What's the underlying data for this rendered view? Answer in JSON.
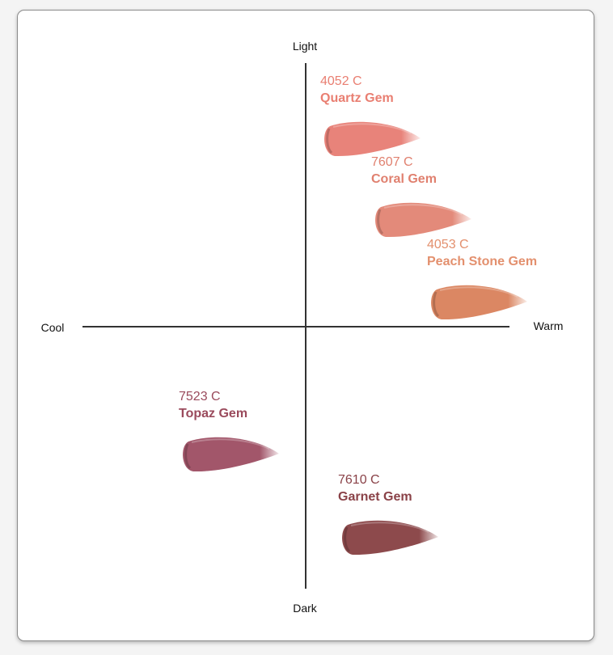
{
  "axes": {
    "top": "Light",
    "bottom": "Dark",
    "left": "Cool",
    "right": "Warm"
  },
  "shades": [
    {
      "code": "4052 C",
      "name": "Quartz Gem",
      "text_color": "#e97f72",
      "swatch_color": "#e8837a"
    },
    {
      "code": "7607 C",
      "name": "Coral Gem",
      "text_color": "#e0806f",
      "swatch_color": "#e38a7a"
    },
    {
      "code": "4053 C",
      "name": "Peach Stone Gem",
      "text_color": "#e3906e",
      "swatch_color": "#db8763"
    },
    {
      "code": "7523 C",
      "name": "Topaz Gem",
      "text_color": "#9a4a5c",
      "swatch_color": "#a2566a"
    },
    {
      "code": "7610 C",
      "name": "Garnet Gem",
      "text_color": "#8a4248",
      "swatch_color": "#8d4a4c"
    }
  ]
}
